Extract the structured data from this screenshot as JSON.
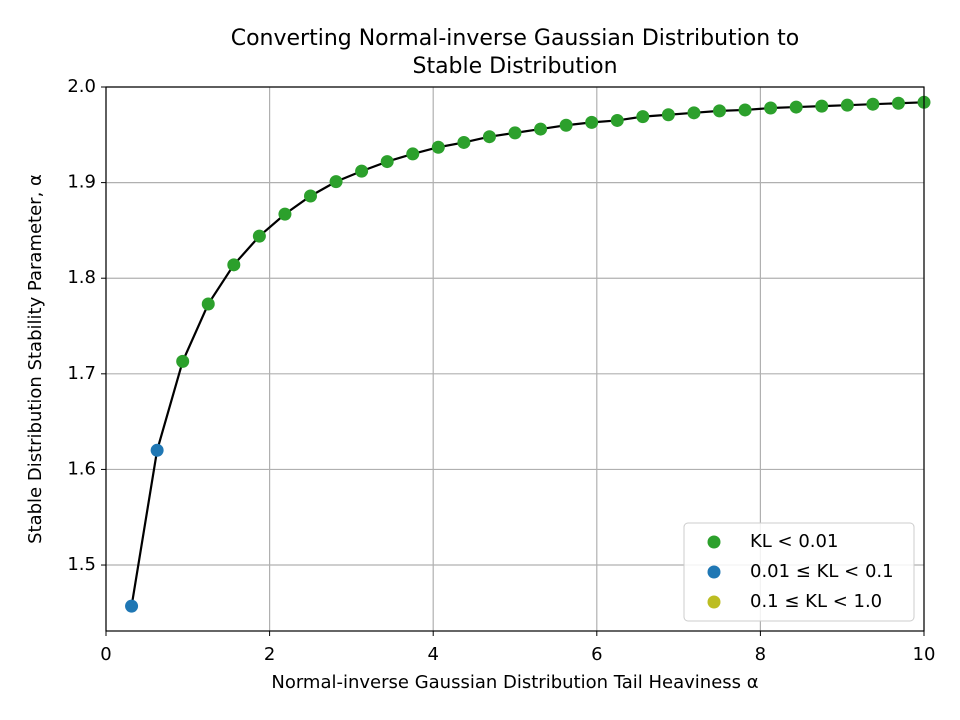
{
  "chart_data": {
    "type": "scatter",
    "title": [
      "Converting Normal-inverse Gaussian Distribution to",
      "Stable Distribution"
    ],
    "xlabel": "Normal-inverse Gaussian Distribution Tail Heaviness α",
    "ylabel": "Stable Distribution Stability Parameter, α",
    "xlim": [
      0,
      10
    ],
    "ylim": [
      1.431,
      2.0
    ],
    "xticks": [
      0,
      2,
      4,
      6,
      8,
      10
    ],
    "yticks": [
      1.5,
      1.6,
      1.7,
      1.8,
      1.9,
      {
        "value": 2,
        "label": "2.0"
      }
    ],
    "grid": true,
    "legend": "lower right",
    "series": [
      {
        "name": "KL < 0.01",
        "color": "#2ca02c",
        "x": [
          0.9375,
          1.25,
          1.5625,
          1.875,
          2.1875,
          2.5,
          2.8125,
          3.125,
          3.4375,
          3.75,
          4.0625,
          4.375,
          4.6875,
          5,
          5.3125,
          5.625,
          5.9375,
          6.25,
          6.5625,
          6.875,
          7.1875,
          7.5,
          7.8125,
          8.125,
          8.4375,
          8.75,
          9.0625,
          9.375,
          9.6875,
          10
        ],
        "values": [
          1.713,
          1.773,
          1.814,
          1.844,
          1.867,
          1.886,
          1.901,
          1.912,
          1.922,
          1.93,
          1.937,
          1.942,
          1.948,
          1.952,
          1.956,
          1.96,
          1.963,
          1.965,
          1.969,
          1.971,
          1.973,
          1.975,
          1.976,
          1.978,
          1.979,
          1.98,
          1.981,
          1.982,
          1.983,
          1.984
        ]
      },
      {
        "name": "0.01 ≤ KL < 0.1",
        "color": "#1f77b4",
        "x": [
          0.3125,
          0.625
        ],
        "values": [
          1.457,
          1.62
        ]
      },
      {
        "name": "0.1 ≤ KL < 1.0",
        "color": "#bcbd22",
        "x": [],
        "values": []
      }
    ],
    "line": {
      "color": "#000000",
      "x": [
        0.3125,
        0.625,
        0.9375,
        1.25,
        1.5625,
        1.875,
        2.1875,
        2.5,
        2.8125,
        3.125,
        3.4375,
        3.75,
        4.0625,
        4.375,
        4.6875,
        5,
        5.3125,
        5.625,
        5.9375,
        6.25,
        6.5625,
        6.875,
        7.1875,
        7.5,
        7.8125,
        8.125,
        8.4375,
        8.75,
        9.0625,
        9.375,
        9.6875,
        10
      ],
      "values": [
        1.457,
        1.62,
        1.713,
        1.773,
        1.814,
        1.844,
        1.867,
        1.886,
        1.901,
        1.912,
        1.922,
        1.93,
        1.937,
        1.942,
        1.948,
        1.952,
        1.956,
        1.96,
        1.963,
        1.965,
        1.969,
        1.971,
        1.973,
        1.975,
        1.976,
        1.978,
        1.979,
        1.98,
        1.981,
        1.982,
        1.983,
        1.984
      ]
    }
  }
}
